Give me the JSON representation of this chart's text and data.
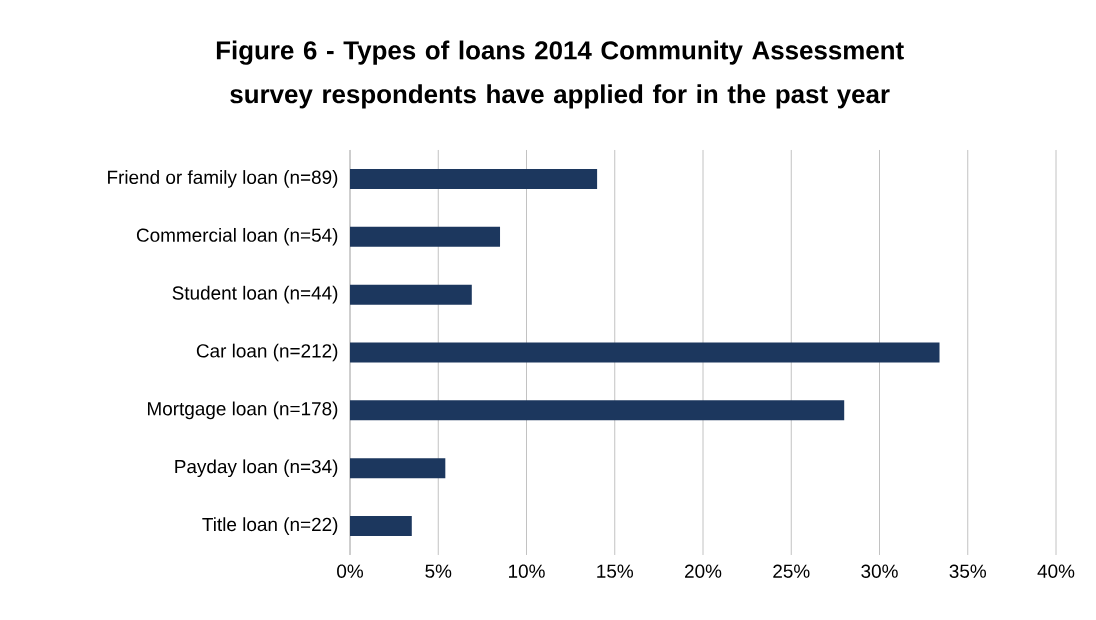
{
  "chart_data": {
    "type": "bar",
    "orientation": "horizontal",
    "title": "Figure 6 - Types of loans 2014 Community Assessment survey respondents have applied for in the past year",
    "categories": [
      "Friend or family loan (n=89)",
      "Commercial loan (n=54)",
      "Student loan (n=44)",
      "Car loan (n=212)",
      "Mortgage loan (n=178)",
      "Payday loan (n=34)",
      "Title loan (n=22)"
    ],
    "values": [
      14.0,
      8.5,
      6.9,
      33.4,
      28.0,
      5.4,
      3.5
    ],
    "color": "#1c375e",
    "xlim": [
      0,
      40
    ],
    "xticks": [
      {
        "value": 0,
        "label": "0%"
      },
      {
        "value": 5,
        "label": "5%"
      },
      {
        "value": 10,
        "label": "10%"
      },
      {
        "value": 15,
        "label": "15%"
      },
      {
        "value": 20,
        "label": "20%"
      },
      {
        "value": 25,
        "label": "25%"
      },
      {
        "value": 30,
        "label": "30%"
      },
      {
        "value": 35,
        "label": "35%"
      },
      {
        "value": 40,
        "label": "40%"
      }
    ],
    "grid": "x"
  }
}
